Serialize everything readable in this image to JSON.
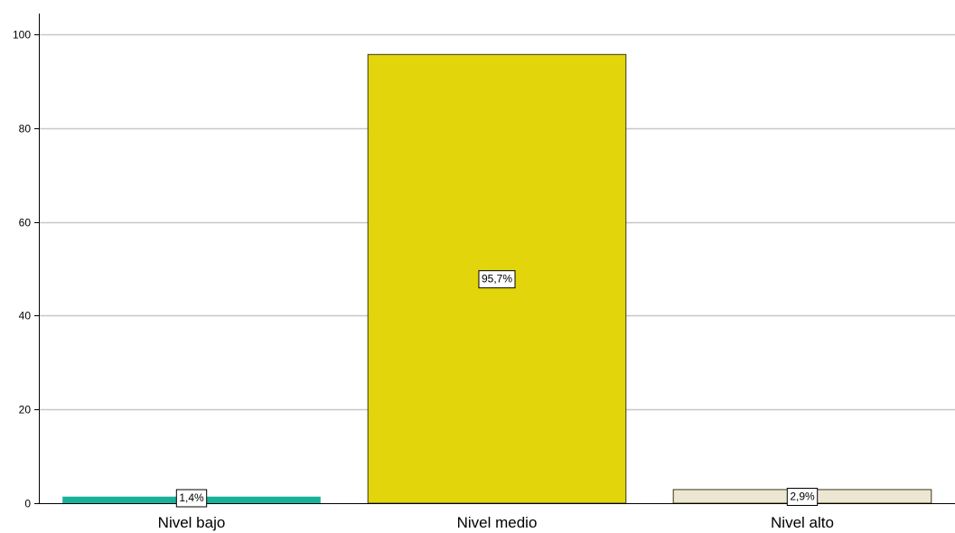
{
  "chart_data": {
    "type": "bar",
    "categories": [
      "Nivel bajo",
      "Nivel medio",
      "Nivel alto"
    ],
    "values": [
      1.4,
      95.7,
      2.9
    ],
    "data_labels": [
      "1,4%",
      "95,7%",
      "2,9%"
    ],
    "colors": [
      "#1ab19a",
      "#e2d50b",
      "#ede6d2"
    ],
    "ylim": [
      0,
      100
    ],
    "yticks": [
      0,
      20,
      40,
      60,
      80,
      100
    ],
    "grid": true,
    "title": "",
    "xlabel": "",
    "ylabel": ""
  }
}
